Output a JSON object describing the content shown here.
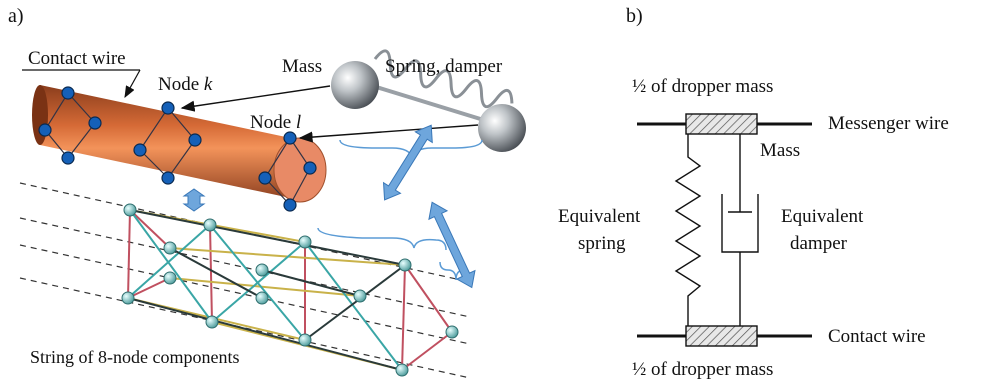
{
  "panel_a": {
    "label": "a)",
    "contact_wire": "Contact wire",
    "node_k": "Node ",
    "node_k_var": "k",
    "node_l": "Node ",
    "node_l_var": "l",
    "mass": "Mass",
    "spring_damper": "Spring, damper",
    "string_caption": "String of 8-node components"
  },
  "panel_b": {
    "label": "b)",
    "top_half_mass": "½ of dropper mass",
    "messenger_wire": "Messenger wire",
    "mass": "Mass",
    "equivalent_spring_1": "Equivalent",
    "equivalent_spring_2": "spring",
    "equivalent_damper_1": "Equivalent",
    "equivalent_damper_2": "damper",
    "contact_wire": "Contact wire",
    "bottom_half_mass": "½ of dropper mass"
  },
  "colors": {
    "wire_dark": "#a9542a",
    "wire_light": "#f08a4f",
    "node_blue": "#1560b8",
    "arrow_blue": "#5b9bd5",
    "lattice_red": "#c05060",
    "lattice_yellow": "#c9b24a",
    "lattice_teal": "#3aa6a6",
    "lattice_dark": "#2a3a3a",
    "lattice_node": "#7fc7c7"
  }
}
